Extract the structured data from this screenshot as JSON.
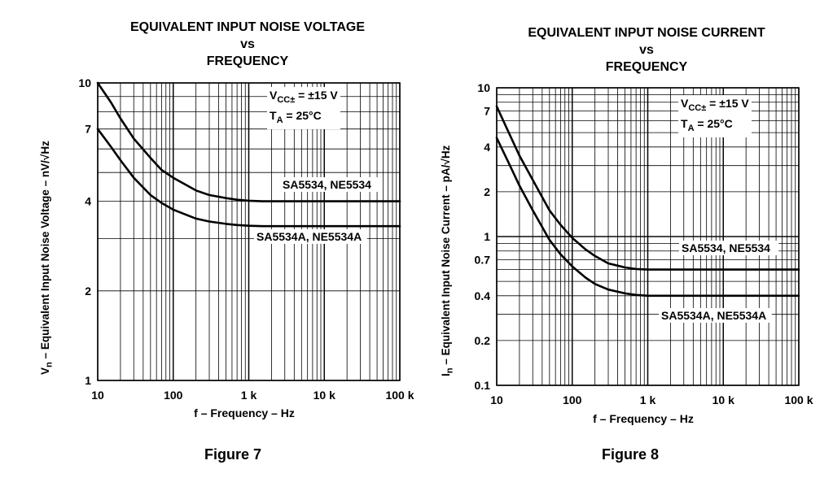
{
  "charts": [
    {
      "title_lines": [
        "EQUIVALENT INPUT NOISE VOLTAGE",
        "vs",
        "FREQUENCY"
      ],
      "figure_label": "Figure 7",
      "ylabel_parts": [
        "V",
        "n",
        " – Equivalent Input Noise Voltage – nV/√Hz"
      ],
      "xlabel": "f – Frequency – Hz",
      "condition_line1": {
        "symbol": "V",
        "sub": "CC±",
        "text": " = ±15 V"
      },
      "condition_line2": {
        "symbol": "T",
        "sub": "A",
        "text": " = 25°C"
      }
    },
    {
      "title_lines": [
        "EQUIVALENT INPUT NOISE CURRENT",
        "vs",
        "FREQUENCY"
      ],
      "figure_label": "Figure 8",
      "ylabel_parts": [
        "I",
        "n",
        " – Equivalent Input Noise Current – pA/√Hz"
      ],
      "xlabel": "f – Frequency – Hz",
      "condition_line1": {
        "symbol": "V",
        "sub": "CC±",
        "text": " = ±15 V"
      },
      "condition_line2": {
        "symbol": "T",
        "sub": "A",
        "text": " = 25°C"
      }
    }
  ],
  "chart_data": [
    {
      "type": "line",
      "title": "EQUIVALENT INPUT NOISE VOLTAGE vs FREQUENCY",
      "xlabel": "f – Frequency – Hz",
      "ylabel": "Vn – Equivalent Input Noise Voltage – nV/√Hz",
      "x_scale": "log",
      "y_scale": "log",
      "xlim": [
        10,
        100000
      ],
      "ylim": [
        1,
        10
      ],
      "x_ticks": [
        10,
        100,
        1000,
        10000,
        100000
      ],
      "x_tick_labels": [
        "10",
        "100",
        "1 k",
        "10 k",
        "100 k"
      ],
      "y_ticks": [
        1,
        2,
        4,
        7,
        10
      ],
      "y_tick_labels": [
        "1",
        "2",
        "4",
        "7",
        "10"
      ],
      "grid": true,
      "series": [
        {
          "name": "SA5534, NE5534",
          "x": [
            10,
            15,
            20,
            30,
            50,
            70,
            100,
            200,
            300,
            500,
            700,
            1000,
            1500,
            2000,
            5000,
            10000,
            100000
          ],
          "y": [
            10,
            8.6,
            7.6,
            6.5,
            5.6,
            5.1,
            4.8,
            4.35,
            4.2,
            4.1,
            4.05,
            4.02,
            4.0,
            4.0,
            4.0,
            4.0,
            4.0
          ]
        },
        {
          "name": "SA5534A, NE5534A",
          "x": [
            10,
            15,
            20,
            30,
            50,
            70,
            100,
            200,
            300,
            500,
            700,
            1000,
            1500,
            2500,
            5000,
            10000,
            100000
          ],
          "y": [
            7.0,
            6.1,
            5.5,
            4.8,
            4.2,
            3.95,
            3.75,
            3.5,
            3.42,
            3.36,
            3.33,
            3.31,
            3.3,
            3.3,
            3.3,
            3.3,
            3.3
          ]
        }
      ],
      "series_label_positions": [
        "above-right",
        "below-right"
      ]
    },
    {
      "type": "line",
      "title": "EQUIVALENT INPUT NOISE CURRENT vs FREQUENCY",
      "xlabel": "f – Frequency – Hz",
      "ylabel": "In – Equivalent Input Noise Current – pA/√Hz",
      "x_scale": "log",
      "y_scale": "log",
      "xlim": [
        10,
        100000
      ],
      "ylim": [
        0.1,
        10
      ],
      "x_ticks": [
        10,
        100,
        1000,
        10000,
        100000
      ],
      "x_tick_labels": [
        "10",
        "100",
        "1 k",
        "10 k",
        "100 k"
      ],
      "y_ticks": [
        0.1,
        0.2,
        0.4,
        0.7,
        1,
        2,
        4,
        7,
        10
      ],
      "y_tick_labels": [
        "0.1",
        "0.2",
        "0.4",
        "0.7",
        "1",
        "2",
        "4",
        "7",
        "10"
      ],
      "grid": true,
      "series": [
        {
          "name": "SA5534, NE5534",
          "x": [
            10,
            15,
            20,
            30,
            50,
            70,
            100,
            150,
            200,
            300,
            500,
            700,
            1000,
            1500,
            2000,
            10000,
            100000
          ],
          "y": [
            7.5,
            4.8,
            3.5,
            2.4,
            1.5,
            1.2,
            0.98,
            0.82,
            0.74,
            0.66,
            0.62,
            0.605,
            0.6,
            0.6,
            0.6,
            0.6,
            0.6
          ]
        },
        {
          "name": "SA5534A, NE5534A",
          "x": [
            10,
            15,
            20,
            30,
            50,
            70,
            100,
            150,
            200,
            300,
            500,
            700,
            1000,
            1500,
            2000,
            10000,
            100000
          ],
          "y": [
            4.6,
            3.0,
            2.2,
            1.5,
            0.95,
            0.76,
            0.63,
            0.53,
            0.48,
            0.44,
            0.415,
            0.405,
            0.4,
            0.4,
            0.4,
            0.4,
            0.4
          ]
        }
      ],
      "series_label_positions": [
        "above-right",
        "below-right"
      ]
    }
  ]
}
